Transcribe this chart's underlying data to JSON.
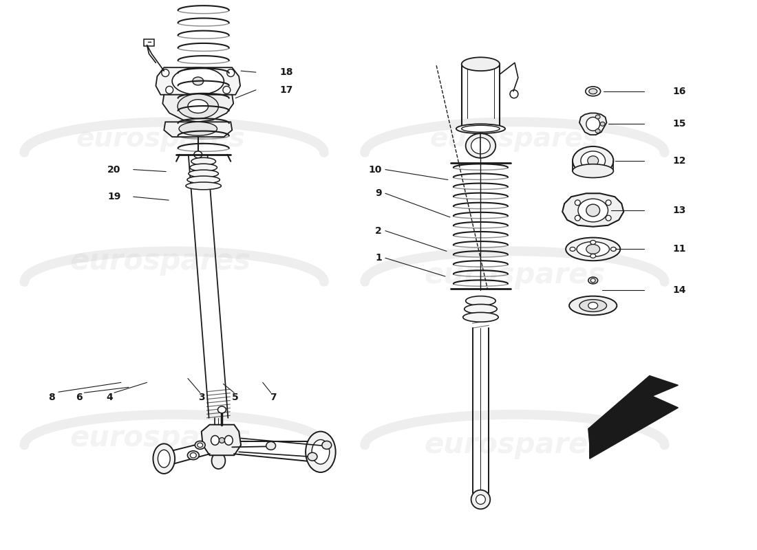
{
  "background_color": "#ffffff",
  "line_color": "#1a1a1a",
  "watermark_color": "#cccccc",
  "watermark_text": "eurospares",
  "fig_width": 11.0,
  "fig_height": 8.0,
  "dpi": 100
}
